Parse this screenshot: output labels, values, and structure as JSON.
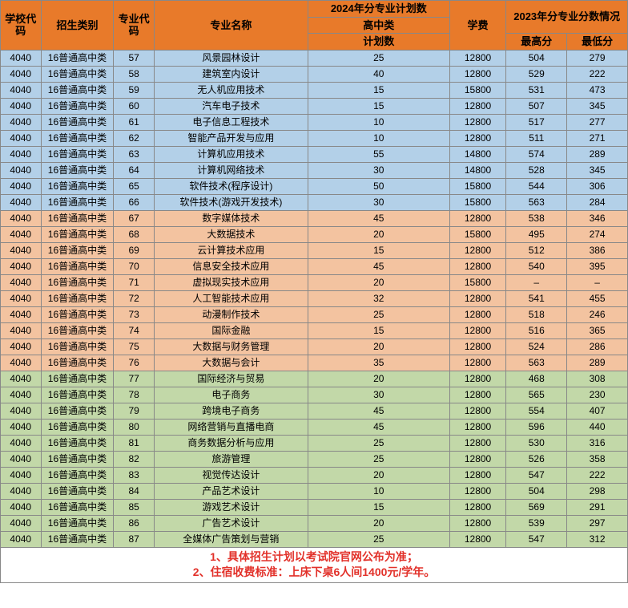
{
  "colors": {
    "header_bg": "#e87a2a",
    "header_text": "#000000",
    "section_blue": "#b3d0e8",
    "section_orange": "#f3c3a0",
    "section_green": "#c2d8a8",
    "footer_text": "#e2312a",
    "border": "#888888"
  },
  "header": {
    "school_code": "学校代码",
    "category": "招生类别",
    "major_code": "专业代码",
    "major_name": "专业名称",
    "plan_2024": "2024年分专业计划数",
    "hs_class": "高中类",
    "plan_count": "计划数",
    "tuition": "学费",
    "score_2023": "2023年分专业分数情况",
    "max_score": "最高分",
    "min_score": "最低分"
  },
  "col_widths": {
    "school_code": 50,
    "category": 90,
    "major_code": 50,
    "major_name": 190,
    "plan_count": 175,
    "tuition": 70,
    "max_score": 75,
    "min_score": 75
  },
  "rows": [
    {
      "section": "blue",
      "school_code": "4040",
      "category": "16普通高中类",
      "major_code": "57",
      "major_name": "风景园林设计",
      "plan": "25",
      "tuition": "12800",
      "max": "504",
      "min": "279"
    },
    {
      "section": "blue",
      "school_code": "4040",
      "category": "16普通高中类",
      "major_code": "58",
      "major_name": "建筑室内设计",
      "plan": "40",
      "tuition": "12800",
      "max": "529",
      "min": "222"
    },
    {
      "section": "blue",
      "school_code": "4040",
      "category": "16普通高中类",
      "major_code": "59",
      "major_name": "无人机应用技术",
      "plan": "15",
      "tuition": "15800",
      "max": "531",
      "min": "473"
    },
    {
      "section": "blue",
      "school_code": "4040",
      "category": "16普通高中类",
      "major_code": "60",
      "major_name": "汽车电子技术",
      "plan": "15",
      "tuition": "12800",
      "max": "507",
      "min": "345"
    },
    {
      "section": "blue",
      "school_code": "4040",
      "category": "16普通高中类",
      "major_code": "61",
      "major_name": "电子信息工程技术",
      "plan": "10",
      "tuition": "12800",
      "max": "517",
      "min": "277"
    },
    {
      "section": "blue",
      "school_code": "4040",
      "category": "16普通高中类",
      "major_code": "62",
      "major_name": "智能产品开发与应用",
      "plan": "10",
      "tuition": "12800",
      "max": "511",
      "min": "271"
    },
    {
      "section": "blue",
      "school_code": "4040",
      "category": "16普通高中类",
      "major_code": "63",
      "major_name": "计算机应用技术",
      "plan": "55",
      "tuition": "14800",
      "max": "574",
      "min": "289"
    },
    {
      "section": "blue",
      "school_code": "4040",
      "category": "16普通高中类",
      "major_code": "64",
      "major_name": "计算机网络技术",
      "plan": "30",
      "tuition": "14800",
      "max": "528",
      "min": "345"
    },
    {
      "section": "blue",
      "school_code": "4040",
      "category": "16普通高中类",
      "major_code": "65",
      "major_name": "软件技术(程序设计)",
      "plan": "50",
      "tuition": "15800",
      "max": "544",
      "min": "306"
    },
    {
      "section": "blue",
      "school_code": "4040",
      "category": "16普通高中类",
      "major_code": "66",
      "major_name": "软件技术(游戏开发技术)",
      "plan": "30",
      "tuition": "15800",
      "max": "563",
      "min": "284"
    },
    {
      "section": "orange",
      "school_code": "4040",
      "category": "16普通高中类",
      "major_code": "67",
      "major_name": "数字媒体技术",
      "plan": "45",
      "tuition": "12800",
      "max": "538",
      "min": "346"
    },
    {
      "section": "orange",
      "school_code": "4040",
      "category": "16普通高中类",
      "major_code": "68",
      "major_name": "大数据技术",
      "plan": "20",
      "tuition": "15800",
      "max": "495",
      "min": "274"
    },
    {
      "section": "orange",
      "school_code": "4040",
      "category": "16普通高中类",
      "major_code": "69",
      "major_name": "云计算技术应用",
      "plan": "15",
      "tuition": "12800",
      "max": "512",
      "min": "386"
    },
    {
      "section": "orange",
      "school_code": "4040",
      "category": "16普通高中类",
      "major_code": "70",
      "major_name": "信息安全技术应用",
      "plan": "45",
      "tuition": "12800",
      "max": "540",
      "min": "395"
    },
    {
      "section": "orange",
      "school_code": "4040",
      "category": "16普通高中类",
      "major_code": "71",
      "major_name": "虚拟现实技术应用",
      "plan": "20",
      "tuition": "15800",
      "max": "–",
      "min": "–"
    },
    {
      "section": "orange",
      "school_code": "4040",
      "category": "16普通高中类",
      "major_code": "72",
      "major_name": "人工智能技术应用",
      "plan": "32",
      "tuition": "12800",
      "max": "541",
      "min": "455"
    },
    {
      "section": "orange",
      "school_code": "4040",
      "category": "16普通高中类",
      "major_code": "73",
      "major_name": "动漫制作技术",
      "plan": "25",
      "tuition": "12800",
      "max": "518",
      "min": "246"
    },
    {
      "section": "orange",
      "school_code": "4040",
      "category": "16普通高中类",
      "major_code": "74",
      "major_name": "国际金融",
      "plan": "15",
      "tuition": "12800",
      "max": "516",
      "min": "365"
    },
    {
      "section": "orange",
      "school_code": "4040",
      "category": "16普通高中类",
      "major_code": "75",
      "major_name": "大数据与财务管理",
      "plan": "20",
      "tuition": "12800",
      "max": "524",
      "min": "286"
    },
    {
      "section": "orange",
      "school_code": "4040",
      "category": "16普通高中类",
      "major_code": "76",
      "major_name": "大数据与会计",
      "plan": "35",
      "tuition": "12800",
      "max": "563",
      "min": "289"
    },
    {
      "section": "green",
      "school_code": "4040",
      "category": "16普通高中类",
      "major_code": "77",
      "major_name": "国际经济与贸易",
      "plan": "20",
      "tuition": "12800",
      "max": "468",
      "min": "308"
    },
    {
      "section": "green",
      "school_code": "4040",
      "category": "16普通高中类",
      "major_code": "78",
      "major_name": "电子商务",
      "plan": "30",
      "tuition": "12800",
      "max": "565",
      "min": "230"
    },
    {
      "section": "green",
      "school_code": "4040",
      "category": "16普通高中类",
      "major_code": "79",
      "major_name": "跨境电子商务",
      "plan": "45",
      "tuition": "12800",
      "max": "554",
      "min": "407"
    },
    {
      "section": "green",
      "school_code": "4040",
      "category": "16普通高中类",
      "major_code": "80",
      "major_name": "网络营销与直播电商",
      "plan": "45",
      "tuition": "12800",
      "max": "596",
      "min": "440"
    },
    {
      "section": "green",
      "school_code": "4040",
      "category": "16普通高中类",
      "major_code": "81",
      "major_name": "商务数据分析与应用",
      "plan": "25",
      "tuition": "12800",
      "max": "530",
      "min": "316"
    },
    {
      "section": "green",
      "school_code": "4040",
      "category": "16普通高中类",
      "major_code": "82",
      "major_name": "旅游管理",
      "plan": "25",
      "tuition": "12800",
      "max": "526",
      "min": "358"
    },
    {
      "section": "green",
      "school_code": "4040",
      "category": "16普通高中类",
      "major_code": "83",
      "major_name": "视觉传达设计",
      "plan": "20",
      "tuition": "12800",
      "max": "547",
      "min": "222"
    },
    {
      "section": "green",
      "school_code": "4040",
      "category": "16普通高中类",
      "major_code": "84",
      "major_name": "产品艺术设计",
      "plan": "10",
      "tuition": "12800",
      "max": "504",
      "min": "298"
    },
    {
      "section": "green",
      "school_code": "4040",
      "category": "16普通高中类",
      "major_code": "85",
      "major_name": "游戏艺术设计",
      "plan": "15",
      "tuition": "12800",
      "max": "569",
      "min": "291"
    },
    {
      "section": "green",
      "school_code": "4040",
      "category": "16普通高中类",
      "major_code": "86",
      "major_name": "广告艺术设计",
      "plan": "20",
      "tuition": "12800",
      "max": "539",
      "min": "297"
    },
    {
      "section": "green",
      "school_code": "4040",
      "category": "16普通高中类",
      "major_code": "87",
      "major_name": "全媒体广告策划与营销",
      "plan": "25",
      "tuition": "12800",
      "max": "547",
      "min": "312"
    }
  ],
  "footer": {
    "line1": "1、具体招生计划以考试院官网公布为准；",
    "line2": "2、住宿收费标准：上床下桌6人间1400元/学年。"
  }
}
